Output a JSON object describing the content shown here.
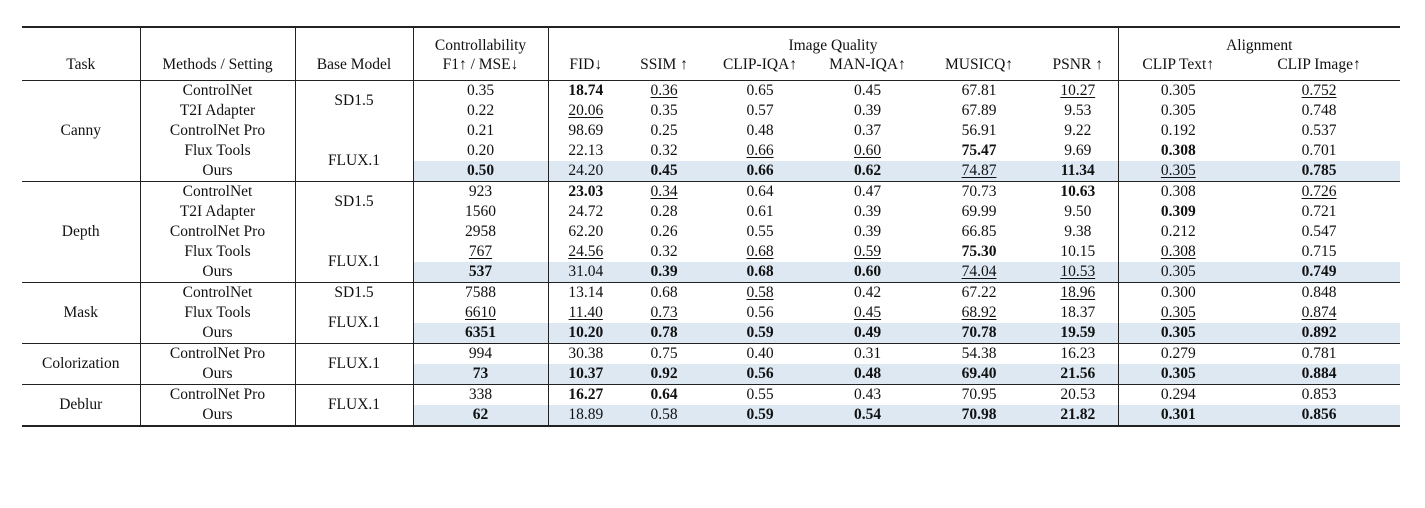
{
  "header": {
    "task": "Task",
    "methods": "Methods / Setting",
    "base_model": "Base Model",
    "control_top": "Controllability",
    "control_bottom": "F1↑ / MSE↓",
    "image_quality": "Image Quality",
    "alignment": "Alignment",
    "metrics": [
      "FID↓",
      "SSIM ↑",
      "CLIP-IQA↑",
      "MAN-IQA↑",
      "MUSICQ↑",
      "PSNR ↑",
      "CLIP Text↑",
      "CLIP Image↑"
    ]
  },
  "groups": [
    {
      "task": "Canny",
      "base_models": [
        {
          "label": "SD1.5",
          "rows": 2
        },
        {
          "label": "",
          "rows": 1
        },
        {
          "label": "FLUX.1",
          "rows": 2
        }
      ],
      "rows": [
        {
          "method": "ControlNet",
          "values": [
            {
              "v": "0.35"
            },
            {
              "v": "18.74",
              "b": true
            },
            {
              "v": "0.36",
              "u": true
            },
            {
              "v": "0.65"
            },
            {
              "v": "0.45"
            },
            {
              "v": "67.81"
            },
            {
              "v": "10.27",
              "u": true
            },
            {
              "v": "0.305"
            },
            {
              "v": "0.752",
              "u": true
            }
          ]
        },
        {
          "method": "T2I Adapter",
          "values": [
            {
              "v": "0.22"
            },
            {
              "v": "20.06",
              "u": true
            },
            {
              "v": "0.35"
            },
            {
              "v": "0.57"
            },
            {
              "v": "0.39"
            },
            {
              "v": "67.89"
            },
            {
              "v": "9.53"
            },
            {
              "v": "0.305"
            },
            {
              "v": "0.748"
            }
          ]
        },
        {
          "method": "ControlNet Pro",
          "values": [
            {
              "v": "0.21"
            },
            {
              "v": "98.69"
            },
            {
              "v": "0.25"
            },
            {
              "v": "0.48"
            },
            {
              "v": "0.37"
            },
            {
              "v": "56.91"
            },
            {
              "v": "9.22"
            },
            {
              "v": "0.192"
            },
            {
              "v": "0.537"
            }
          ]
        },
        {
          "method": "Flux Tools",
          "values": [
            {
              "v": "0.20"
            },
            {
              "v": "22.13"
            },
            {
              "v": "0.32"
            },
            {
              "v": "0.66",
              "u": true
            },
            {
              "v": "0.60",
              "u": true
            },
            {
              "v": "75.47",
              "b": true
            },
            {
              "v": "9.69"
            },
            {
              "v": "0.308",
              "b": true
            },
            {
              "v": "0.701"
            }
          ]
        },
        {
          "method": "Ours",
          "ours": true,
          "values": [
            {
              "v": "0.50",
              "b": true
            },
            {
              "v": "24.20"
            },
            {
              "v": "0.45",
              "b": true
            },
            {
              "v": "0.66",
              "b": true
            },
            {
              "v": "0.62",
              "b": true
            },
            {
              "v": "74.87",
              "u": true
            },
            {
              "v": "11.34",
              "b": true
            },
            {
              "v": "0.305",
              "u": true
            },
            {
              "v": "0.785",
              "b": true
            }
          ]
        }
      ]
    },
    {
      "task": "Depth",
      "base_models": [
        {
          "label": "SD1.5",
          "rows": 2
        },
        {
          "label": "",
          "rows": 1
        },
        {
          "label": "FLUX.1",
          "rows": 2
        }
      ],
      "rows": [
        {
          "method": "ControlNet",
          "values": [
            {
              "v": "923"
            },
            {
              "v": "23.03",
              "b": true
            },
            {
              "v": "0.34",
              "u": true
            },
            {
              "v": "0.64"
            },
            {
              "v": "0.47"
            },
            {
              "v": "70.73"
            },
            {
              "v": "10.63",
              "b": true
            },
            {
              "v": "0.308"
            },
            {
              "v": "0.726",
              "u": true
            }
          ]
        },
        {
          "method": "T2I Adapter",
          "values": [
            {
              "v": "1560"
            },
            {
              "v": "24.72"
            },
            {
              "v": "0.28"
            },
            {
              "v": "0.61"
            },
            {
              "v": "0.39"
            },
            {
              "v": "69.99"
            },
            {
              "v": "9.50"
            },
            {
              "v": "0.309",
              "b": true
            },
            {
              "v": "0.721"
            }
          ]
        },
        {
          "method": "ControlNet Pro",
          "values": [
            {
              "v": "2958"
            },
            {
              "v": "62.20"
            },
            {
              "v": "0.26"
            },
            {
              "v": "0.55"
            },
            {
              "v": "0.39"
            },
            {
              "v": "66.85"
            },
            {
              "v": "9.38"
            },
            {
              "v": "0.212"
            },
            {
              "v": "0.547"
            }
          ]
        },
        {
          "method": "Flux Tools",
          "values": [
            {
              "v": "767",
              "u": true
            },
            {
              "v": "24.56",
              "u": true
            },
            {
              "v": "0.32"
            },
            {
              "v": "0.68",
              "u": true
            },
            {
              "v": "0.59",
              "u": true
            },
            {
              "v": "75.30",
              "b": true
            },
            {
              "v": "10.15"
            },
            {
              "v": "0.308",
              "u": true
            },
            {
              "v": "0.715"
            }
          ]
        },
        {
          "method": "Ours",
          "ours": true,
          "values": [
            {
              "v": "537",
              "b": true
            },
            {
              "v": "31.04"
            },
            {
              "v": "0.39",
              "b": true
            },
            {
              "v": "0.68",
              "b": true
            },
            {
              "v": "0.60",
              "b": true
            },
            {
              "v": "74.04",
              "u": true
            },
            {
              "v": "10.53",
              "u": true
            },
            {
              "v": "0.305"
            },
            {
              "v": "0.749",
              "b": true
            }
          ]
        }
      ]
    },
    {
      "task": "Mask",
      "base_models": [
        {
          "label": "SD1.5",
          "rows": 1
        },
        {
          "label": "FLUX.1",
          "rows": 2
        }
      ],
      "rows": [
        {
          "method": "ControlNet",
          "values": [
            {
              "v": "7588"
            },
            {
              "v": "13.14"
            },
            {
              "v": "0.68"
            },
            {
              "v": "0.58",
              "u": true
            },
            {
              "v": "0.42"
            },
            {
              "v": "67.22"
            },
            {
              "v": "18.96",
              "u": true
            },
            {
              "v": "0.300"
            },
            {
              "v": "0.848"
            }
          ]
        },
        {
          "method": "Flux Tools",
          "values": [
            {
              "v": "6610",
              "u": true
            },
            {
              "v": "11.40",
              "u": true
            },
            {
              "v": "0.73",
              "u": true
            },
            {
              "v": "0.56"
            },
            {
              "v": "0.45",
              "u": true
            },
            {
              "v": "68.92",
              "u": true
            },
            {
              "v": "18.37"
            },
            {
              "v": "0.305",
              "u": true
            },
            {
              "v": "0.874",
              "u": true
            }
          ]
        },
        {
          "method": "Ours",
          "ours": true,
          "values": [
            {
              "v": "6351",
              "b": true
            },
            {
              "v": "10.20",
              "b": true
            },
            {
              "v": "0.78",
              "b": true
            },
            {
              "v": "0.59",
              "b": true
            },
            {
              "v": "0.49",
              "b": true
            },
            {
              "v": "70.78",
              "b": true
            },
            {
              "v": "19.59",
              "b": true
            },
            {
              "v": "0.305",
              "b": true
            },
            {
              "v": "0.892",
              "b": true
            }
          ]
        }
      ]
    },
    {
      "task": "Colorization",
      "base_models": [
        {
          "label": "FLUX.1",
          "rows": 2
        }
      ],
      "rows": [
        {
          "method": "ControlNet Pro",
          "values": [
            {
              "v": "994"
            },
            {
              "v": "30.38"
            },
            {
              "v": "0.75"
            },
            {
              "v": "0.40"
            },
            {
              "v": "0.31"
            },
            {
              "v": "54.38"
            },
            {
              "v": "16.23"
            },
            {
              "v": "0.279"
            },
            {
              "v": "0.781"
            }
          ]
        },
        {
          "method": "Ours",
          "ours": true,
          "values": [
            {
              "v": "73",
              "b": true
            },
            {
              "v": "10.37",
              "b": true
            },
            {
              "v": "0.92",
              "b": true
            },
            {
              "v": "0.56",
              "b": true
            },
            {
              "v": "0.48",
              "b": true
            },
            {
              "v": "69.40",
              "b": true
            },
            {
              "v": "21.56",
              "b": true
            },
            {
              "v": "0.305",
              "b": true
            },
            {
              "v": "0.884",
              "b": true
            }
          ]
        }
      ]
    },
    {
      "task": "Deblur",
      "base_models": [
        {
          "label": "FLUX.1",
          "rows": 2
        }
      ],
      "rows": [
        {
          "method": "ControlNet Pro",
          "values": [
            {
              "v": "338"
            },
            {
              "v": "16.27",
              "b": true
            },
            {
              "v": "0.64",
              "b": true
            },
            {
              "v": "0.55"
            },
            {
              "v": "0.43"
            },
            {
              "v": "70.95"
            },
            {
              "v": "20.53"
            },
            {
              "v": "0.294"
            },
            {
              "v": "0.853"
            }
          ]
        },
        {
          "method": "Ours",
          "ours": true,
          "values": [
            {
              "v": "62",
              "b": true
            },
            {
              "v": "18.89"
            },
            {
              "v": "0.58"
            },
            {
              "v": "0.59",
              "b": true
            },
            {
              "v": "0.54",
              "b": true
            },
            {
              "v": "70.98",
              "b": true
            },
            {
              "v": "21.82",
              "b": true
            },
            {
              "v": "0.301",
              "b": true
            },
            {
              "v": "0.856",
              "b": true
            }
          ]
        }
      ]
    }
  ],
  "colors": {
    "highlight": "#dde8f3",
    "rule": "#222222"
  }
}
